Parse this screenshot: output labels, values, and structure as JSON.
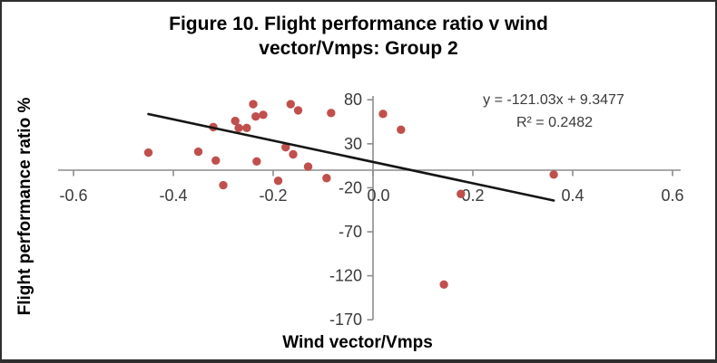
{
  "chart_data": {
    "type": "scatter",
    "title": "Figure 10. Flight performance ratio v wind vector/Vmps: Group 2",
    "xlabel": "Wind vector/Vmps",
    "ylabel": "Flight performance ratio %",
    "xlim": [
      -0.6,
      0.6
    ],
    "ylim": [
      -170,
      80
    ],
    "grid": false,
    "x_ticks": [
      {
        "value": -0.6,
        "label": "-0.6"
      },
      {
        "value": -0.4,
        "label": "-0.4"
      },
      {
        "value": -0.2,
        "label": "-0.2"
      },
      {
        "value": 0.0,
        "label": "0.0"
      },
      {
        "value": 0.2,
        "label": "0.2"
      },
      {
        "value": 0.4,
        "label": "0.4"
      },
      {
        "value": 0.6,
        "label": "0.6"
      }
    ],
    "y_ticks": [
      {
        "value": 80,
        "label": "80"
      },
      {
        "value": 30,
        "label": "30"
      },
      {
        "value": -20,
        "label": "-20"
      },
      {
        "value": -70,
        "label": "-70"
      },
      {
        "value": -120,
        "label": "-120"
      },
      {
        "value": -170,
        "label": "-170"
      }
    ],
    "points": [
      [
        -0.45,
        20
      ],
      [
        -0.35,
        21
      ],
      [
        -0.32,
        49
      ],
      [
        -0.315,
        11
      ],
      [
        -0.3,
        -17
      ],
      [
        -0.276,
        56
      ],
      [
        -0.269,
        48
      ],
      [
        -0.253,
        48
      ],
      [
        -0.24,
        75
      ],
      [
        -0.235,
        61
      ],
      [
        -0.22,
        63
      ],
      [
        -0.233,
        10
      ],
      [
        -0.19,
        -12
      ],
      [
        -0.175,
        26
      ],
      [
        -0.165,
        75
      ],
      [
        -0.16,
        18
      ],
      [
        -0.15,
        68
      ],
      [
        -0.13,
        4
      ],
      [
        -0.093,
        -9
      ],
      [
        -0.084,
        65
      ],
      [
        0.02,
        64
      ],
      [
        0.056,
        46
      ],
      [
        0.176,
        -27
      ],
      [
        0.142,
        -130
      ],
      [
        0.362,
        -5
      ]
    ],
    "trendline": {
      "slope": -121.03,
      "intercept": 9.3477,
      "x_start": -0.45,
      "x_end": 0.362
    },
    "annotations": {
      "equation": "y = -121.03x + 9.3477",
      "r_squared": "R² = 0.2482"
    },
    "colors": {
      "point": "#C0504D",
      "trendline": "#151515",
      "axis": "#8C8C8C",
      "tick_label": "#3A3A3A"
    }
  }
}
